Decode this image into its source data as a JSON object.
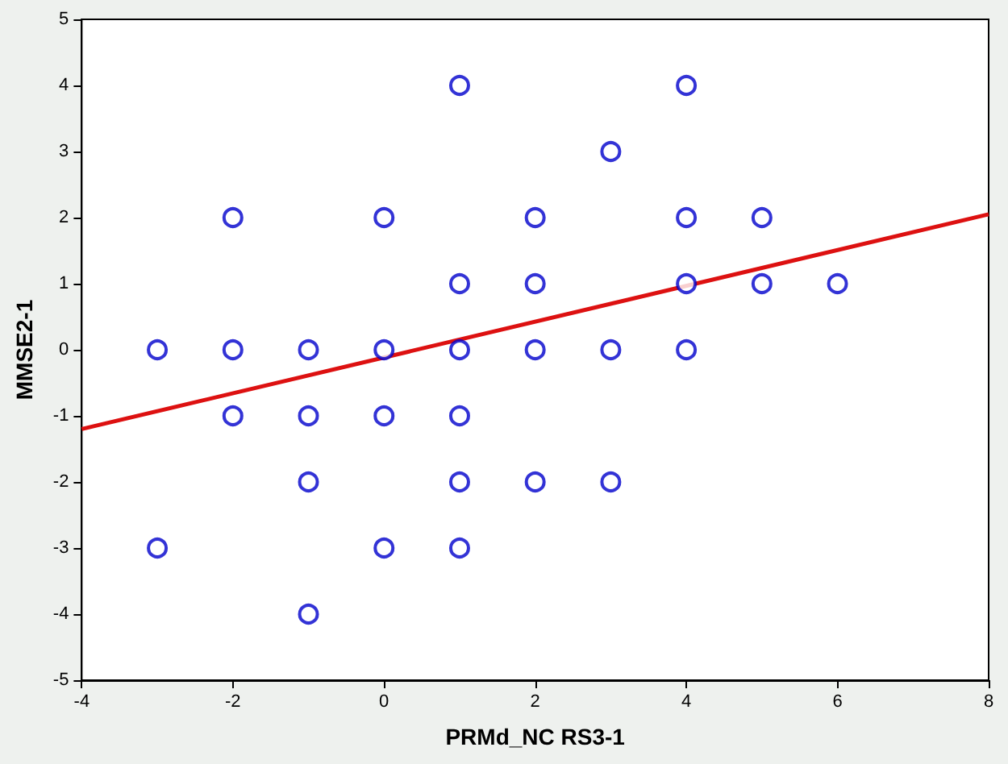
{
  "chart_data": {
    "type": "scatter",
    "xlabel": "PRMd_NC RS3-1",
    "ylabel": "MMSE2-1",
    "xlim": [
      -4,
      8
    ],
    "xticks": [
      -4,
      -2,
      0,
      2,
      4,
      6,
      8
    ],
    "ylim": [
      -5,
      5
    ],
    "yticks": [
      -5,
      -4,
      -3,
      -2,
      -1,
      0,
      1,
      2,
      3,
      4,
      5
    ],
    "grid": false,
    "marker": "circle",
    "series": [
      {
        "color": "#0000cc",
        "x": [
          -3,
          -3,
          -2,
          -2,
          -2,
          -1,
          -1,
          -1,
          -1,
          0,
          0,
          0,
          0,
          1,
          1,
          1,
          1,
          1,
          1,
          2,
          2,
          2,
          2,
          3,
          3,
          3,
          4,
          4,
          4,
          4,
          5,
          5,
          6
        ],
        "values": [
          0,
          -3,
          2,
          0,
          -1,
          0,
          -1,
          -2,
          -4,
          2,
          0,
          -1,
          -3,
          4,
          1,
          0,
          -1,
          -2,
          -3,
          2,
          1,
          0,
          -2,
          3,
          0,
          -2,
          4,
          2,
          1,
          0,
          2,
          1,
          1
        ]
      },
      {
        "type": "line",
        "color": "#dd1111",
        "x": [
          -4,
          8
        ],
        "values": [
          -1.2,
          2.05
        ],
        "marker": "none",
        "line_style": "solid"
      }
    ]
  }
}
